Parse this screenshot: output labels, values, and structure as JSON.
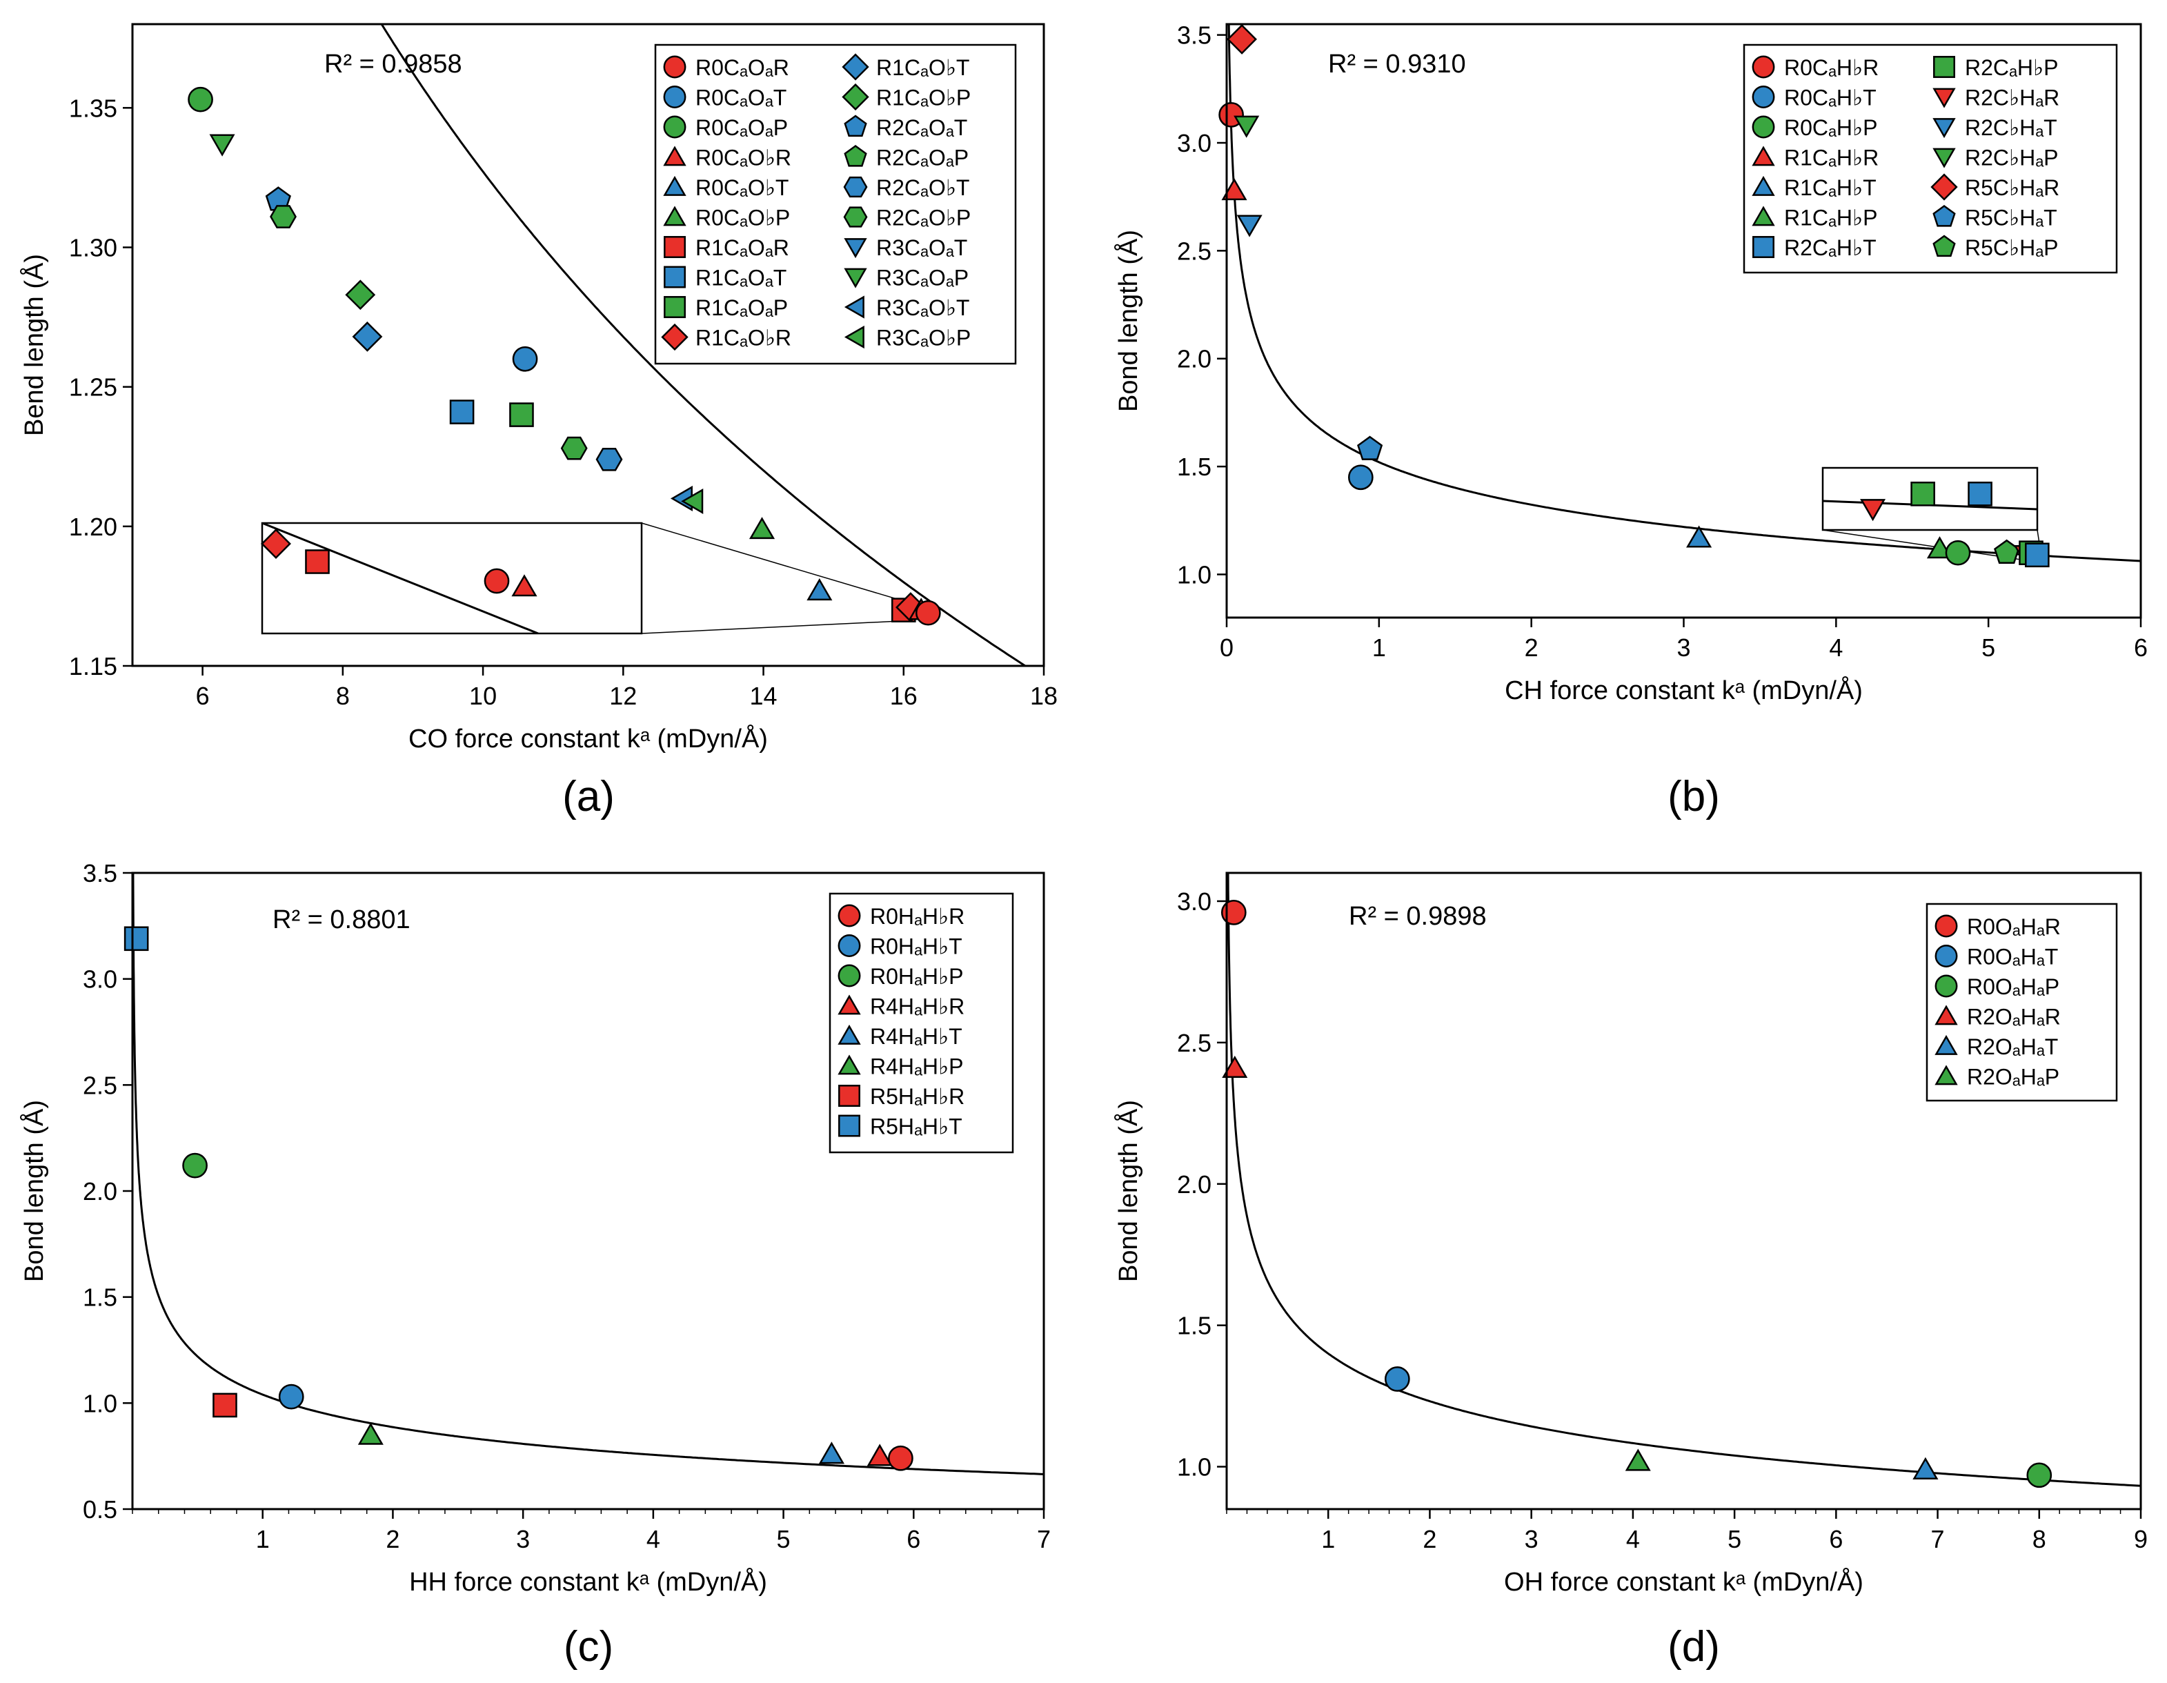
{
  "colors": {
    "R": "#e8302a",
    "T": "#2f86c6",
    "P": "#3aa640"
  },
  "chart_data": [
    {
      "id": "a",
      "type": "scatter",
      "panel_label": "(a)",
      "r2": "R² = 0.9858",
      "xlabel": "CO force constant kᵃ (mDyn/Å)",
      "ylabel": "Bend length (Å)",
      "xlim": [
        5,
        18
      ],
      "ylim": [
        1.15,
        1.38
      ],
      "xticks": [
        6,
        8,
        10,
        12,
        14,
        16,
        18
      ],
      "yticks": [
        1.15,
        1.2,
        1.25,
        1.3,
        1.35
      ],
      "ytick_labels": [
        "1.15",
        "1.20",
        "1.25",
        "1.30",
        "1.35"
      ],
      "fit": {
        "a": 2.36,
        "b": -0.25
      },
      "legend_cols": 2,
      "legend": [
        {
          "name": "R0CₐOₐR",
          "shape": "circle",
          "color": "R"
        },
        {
          "name": "R0CₐOₐT",
          "shape": "circle",
          "color": "T"
        },
        {
          "name": "R0CₐOₐP",
          "shape": "circle",
          "color": "P"
        },
        {
          "name": "R0CₐO♭R",
          "shape": "triangle",
          "color": "R"
        },
        {
          "name": "R0CₐO♭T",
          "shape": "triangle",
          "color": "T"
        },
        {
          "name": "R0CₐO♭P",
          "shape": "triangle",
          "color": "P"
        },
        {
          "name": "R1CₐOₐR",
          "shape": "square",
          "color": "R"
        },
        {
          "name": "R1CₐOₐT",
          "shape": "square",
          "color": "T"
        },
        {
          "name": "R1CₐOₐP",
          "shape": "square",
          "color": "P"
        },
        {
          "name": "R1CₐO♭R",
          "shape": "diamond",
          "color": "R"
        },
        {
          "name": "R1CₐO♭T",
          "shape": "diamond",
          "color": "T"
        },
        {
          "name": "R1CₐO♭P",
          "shape": "diamond",
          "color": "P"
        },
        {
          "name": "R2CₐOₐT",
          "shape": "pentagon",
          "color": "T"
        },
        {
          "name": "R2CₐOₐP",
          "shape": "pentagon",
          "color": "P"
        },
        {
          "name": "R2CₐO♭T",
          "shape": "hexagon",
          "color": "T"
        },
        {
          "name": "R2CₐO♭P",
          "shape": "hexagon",
          "color": "P"
        },
        {
          "name": "R3CₐOₐT",
          "shape": "triangle-down",
          "color": "T"
        },
        {
          "name": "R3CₐOₐP",
          "shape": "triangle-down",
          "color": "P"
        },
        {
          "name": "R3CₐO♭T",
          "shape": "triangle-left",
          "color": "T"
        },
        {
          "name": "R3CₐO♭P",
          "shape": "triangle-left",
          "color": "P"
        }
      ],
      "points": [
        {
          "x": 5.97,
          "y": 1.353,
          "shape": "circle",
          "color": "P"
        },
        {
          "x": 6.28,
          "y": 1.337,
          "shape": "triangle-down",
          "color": "P"
        },
        {
          "x": 7.08,
          "y": 1.317,
          "shape": "pentagon",
          "color": "T"
        },
        {
          "x": 7.15,
          "y": 1.311,
          "shape": "hexagon",
          "color": "P"
        },
        {
          "x": 8.25,
          "y": 1.283,
          "shape": "diamond",
          "color": "P"
        },
        {
          "x": 8.35,
          "y": 1.268,
          "shape": "diamond",
          "color": "T"
        },
        {
          "x": 10.6,
          "y": 1.26,
          "shape": "circle",
          "color": "T"
        },
        {
          "x": 9.7,
          "y": 1.241,
          "shape": "square",
          "color": "T"
        },
        {
          "x": 10.55,
          "y": 1.24,
          "shape": "square",
          "color": "P"
        },
        {
          "x": 11.3,
          "y": 1.228,
          "shape": "hexagon",
          "color": "P"
        },
        {
          "x": 11.8,
          "y": 1.224,
          "shape": "hexagon",
          "color": "T"
        },
        {
          "x": 12.85,
          "y": 1.21,
          "shape": "triangle-left",
          "color": "T"
        },
        {
          "x": 13.0,
          "y": 1.209,
          "shape": "triangle-left",
          "color": "P"
        },
        {
          "x": 13.98,
          "y": 1.199,
          "shape": "triangle",
          "color": "P"
        },
        {
          "x": 14.8,
          "y": 1.177,
          "shape": "triangle",
          "color": "T"
        },
        {
          "x": 16.0,
          "y": 1.17,
          "shape": "square",
          "color": "R"
        },
        {
          "x": 16.1,
          "y": 1.171,
          "shape": "diamond",
          "color": "R"
        },
        {
          "x": 16.25,
          "y": 1.17,
          "shape": "triangle",
          "color": "R"
        },
        {
          "x": 16.35,
          "y": 1.169,
          "shape": "circle",
          "color": "R"
        }
      ],
      "inset": {
        "source_x": [
          15.9,
          16.45
        ],
        "source_y": [
          1.166,
          1.174
        ],
        "points": [
          {
            "x": 15.92,
            "y": 1.1725,
            "shape": "diamond",
            "color": "R"
          },
          {
            "x": 15.98,
            "y": 1.1712,
            "shape": "square",
            "color": "R"
          },
          {
            "x": 16.24,
            "y": 1.1698,
            "shape": "circle",
            "color": "R"
          },
          {
            "x": 16.28,
            "y": 1.1694,
            "shape": "triangle",
            "color": "R"
          }
        ]
      }
    },
    {
      "id": "b",
      "type": "scatter",
      "panel_label": "(b)",
      "r2": "R² = 0.9310",
      "xlabel": "CH force constant kᵃ (mDyn/Å)",
      "ylabel": "Bond length (Å)",
      "xlim": [
        0,
        6
      ],
      "ylim": [
        0.8,
        3.55
      ],
      "xticks": [
        0,
        1,
        2,
        3,
        4,
        5,
        6
      ],
      "yticks": [
        1.0,
        1.5,
        2.0,
        2.5,
        3.0,
        3.5
      ],
      "ytick_labels": [
        "1.0",
        "1.5",
        "2.0",
        "2.5",
        "3.0",
        "3.5"
      ],
      "fit": {
        "a": 1.52,
        "b": -0.2
      },
      "legend_cols": 2,
      "legend": [
        {
          "name": "R0CₐH♭R",
          "shape": "circle",
          "color": "R"
        },
        {
          "name": "R0CₐH♭T",
          "shape": "circle",
          "color": "T"
        },
        {
          "name": "R0CₐH♭P",
          "shape": "circle",
          "color": "P"
        },
        {
          "name": "R1CₐH♭R",
          "shape": "triangle",
          "color": "R"
        },
        {
          "name": "R1CₐH♭T",
          "shape": "triangle",
          "color": "T"
        },
        {
          "name": "R1CₐH♭P",
          "shape": "triangle",
          "color": "P"
        },
        {
          "name": "R2CₐH♭T",
          "shape": "square",
          "color": "T"
        },
        {
          "name": "R2CₐH♭P",
          "shape": "square",
          "color": "P"
        },
        {
          "name": "R2C♭HₐR",
          "shape": "triangle-down",
          "color": "R"
        },
        {
          "name": "R2C♭HₐT",
          "shape": "triangle-down",
          "color": "T"
        },
        {
          "name": "R2C♭HₐP",
          "shape": "triangle-down",
          "color": "P"
        },
        {
          "name": "R5C♭HₐR",
          "shape": "diamond",
          "color": "R"
        },
        {
          "name": "R5C♭HₐT",
          "shape": "pentagon",
          "color": "T"
        },
        {
          "name": "R5C♭HₐP",
          "shape": "pentagon",
          "color": "P"
        }
      ],
      "points": [
        {
          "x": 0.03,
          "y": 3.13,
          "shape": "circle",
          "color": "R"
        },
        {
          "x": 0.1,
          "y": 3.48,
          "shape": "diamond",
          "color": "R"
        },
        {
          "x": 0.13,
          "y": 3.08,
          "shape": "triangle-down",
          "color": "P"
        },
        {
          "x": 0.05,
          "y": 2.78,
          "shape": "triangle",
          "color": "R"
        },
        {
          "x": 0.15,
          "y": 2.62,
          "shape": "triangle-down",
          "color": "T"
        },
        {
          "x": 0.88,
          "y": 1.45,
          "shape": "circle",
          "color": "T"
        },
        {
          "x": 0.94,
          "y": 1.58,
          "shape": "pentagon",
          "color": "T"
        },
        {
          "x": 3.1,
          "y": 1.17,
          "shape": "triangle",
          "color": "T"
        },
        {
          "x": 4.68,
          "y": 1.12,
          "shape": "triangle",
          "color": "P"
        },
        {
          "x": 4.8,
          "y": 1.1,
          "shape": "circle",
          "color": "P"
        },
        {
          "x": 5.12,
          "y": 1.1,
          "shape": "pentagon",
          "color": "P"
        },
        {
          "x": 5.25,
          "y": 1.09,
          "shape": "triangle-down",
          "color": "R"
        },
        {
          "x": 5.28,
          "y": 1.1,
          "shape": "square",
          "color": "P"
        },
        {
          "x": 5.32,
          "y": 1.09,
          "shape": "square",
          "color": "T"
        }
      ],
      "inset": {
        "source_x": [
          5.2,
          5.35
        ],
        "source_y": [
          1.07,
          1.12
        ],
        "points": [
          {
            "x": 5.235,
            "y": 1.087,
            "shape": "triangle-down",
            "color": "R"
          },
          {
            "x": 5.27,
            "y": 1.099,
            "shape": "square",
            "color": "P"
          },
          {
            "x": 5.31,
            "y": 1.099,
            "shape": "square",
            "color": "T"
          }
        ]
      }
    },
    {
      "id": "c",
      "type": "scatter",
      "panel_label": "(c)",
      "r2": "R² = 0.8801",
      "xlabel": "HH force constant kᵃ (mDyn/Å)",
      "ylabel": "Bond length (Å)",
      "xlim": [
        0,
        7
      ],
      "ylim": [
        0.5,
        3.5
      ],
      "xticks": [
        1,
        2,
        3,
        4,
        5,
        6,
        7
      ],
      "yticks": [
        0.5,
        1.0,
        1.5,
        2.0,
        2.5,
        3.0,
        3.5
      ],
      "ytick_labels": [
        "0.5",
        "1.0",
        "1.5",
        "2.0",
        "2.5",
        "3.0",
        "3.5"
      ],
      "fit": {
        "a": 1.04,
        "b": -0.23
      },
      "legend_cols": 1,
      "legend": [
        {
          "name": "R0HₐH♭R",
          "shape": "circle",
          "color": "R"
        },
        {
          "name": "R0HₐH♭T",
          "shape": "circle",
          "color": "T"
        },
        {
          "name": "R0HₐH♭P",
          "shape": "circle",
          "color": "P"
        },
        {
          "name": "R4HₐH♭R",
          "shape": "triangle",
          "color": "R"
        },
        {
          "name": "R4HₐH♭T",
          "shape": "triangle",
          "color": "T"
        },
        {
          "name": "R4HₐH♭P",
          "shape": "triangle",
          "color": "P"
        },
        {
          "name": "R5HₐH♭R",
          "shape": "square",
          "color": "R"
        },
        {
          "name": "R5HₐH♭T",
          "shape": "square",
          "color": "T"
        }
      ],
      "points": [
        {
          "x": 0.03,
          "y": 3.19,
          "shape": "square",
          "color": "T"
        },
        {
          "x": 0.48,
          "y": 2.12,
          "shape": "circle",
          "color": "P"
        },
        {
          "x": 0.71,
          "y": 0.99,
          "shape": "square",
          "color": "R"
        },
        {
          "x": 1.22,
          "y": 1.03,
          "shape": "circle",
          "color": "T"
        },
        {
          "x": 1.83,
          "y": 0.85,
          "shape": "triangle",
          "color": "P"
        },
        {
          "x": 5.37,
          "y": 0.76,
          "shape": "triangle",
          "color": "T"
        },
        {
          "x": 5.74,
          "y": 0.75,
          "shape": "triangle",
          "color": "R"
        },
        {
          "x": 5.9,
          "y": 0.74,
          "shape": "circle",
          "color": "R"
        }
      ]
    },
    {
      "id": "d",
      "type": "scatter",
      "panel_label": "(d)",
      "r2": "R² = 0.9898",
      "xlabel": "OH force constant kᵃ (mDyn/Å)",
      "ylabel": "Bond length (Å)",
      "xlim": [
        0,
        9
      ],
      "ylim": [
        0.85,
        3.1
      ],
      "xticks": [
        1,
        2,
        3,
        4,
        5,
        6,
        7,
        8,
        9
      ],
      "yticks": [
        1.0,
        1.5,
        2.0,
        2.5,
        3.0
      ],
      "ytick_labels": [
        "1.0",
        "1.5",
        "2.0",
        "2.5",
        "3.0"
      ],
      "fit": {
        "a": 1.4,
        "b": -0.185
      },
      "legend_cols": 1,
      "legend": [
        {
          "name": "R0OₐHₐR",
          "shape": "circle",
          "color": "R"
        },
        {
          "name": "R0OₐHₐT",
          "shape": "circle",
          "color": "T"
        },
        {
          "name": "R0OₐHₐP",
          "shape": "circle",
          "color": "P"
        },
        {
          "name": "R2OₐHₐR",
          "shape": "triangle",
          "color": "R"
        },
        {
          "name": "R2OₐHₐT",
          "shape": "triangle",
          "color": "T"
        },
        {
          "name": "R2OₐHₐP",
          "shape": "triangle",
          "color": "P"
        }
      ],
      "points": [
        {
          "x": 0.07,
          "y": 2.96,
          "shape": "circle",
          "color": "R"
        },
        {
          "x": 0.08,
          "y": 2.41,
          "shape": "triangle",
          "color": "R"
        },
        {
          "x": 1.68,
          "y": 1.31,
          "shape": "circle",
          "color": "T"
        },
        {
          "x": 4.05,
          "y": 1.02,
          "shape": "triangle",
          "color": "P"
        },
        {
          "x": 6.88,
          "y": 0.99,
          "shape": "triangle",
          "color": "T"
        },
        {
          "x": 8.0,
          "y": 0.97,
          "shape": "circle",
          "color": "P"
        }
      ]
    }
  ]
}
